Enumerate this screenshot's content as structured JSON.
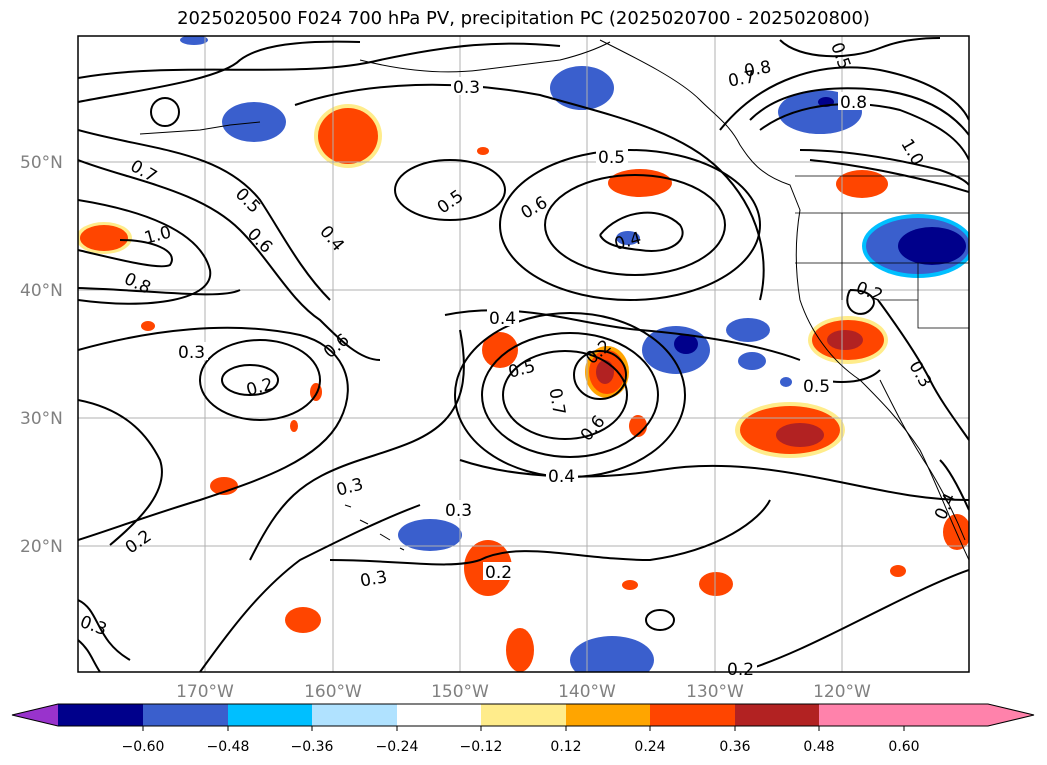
{
  "title": "2025020500 F024 700 hPa PV, precipitation PC (2025020700 - 2025020800)",
  "lat_labels": [
    "50°N",
    "40°N",
    "30°N",
    "20°N"
  ],
  "lon_labels": [
    "170°W",
    "160°W",
    "150°W",
    "140°W",
    "130°W",
    "120°W"
  ],
  "contour_labels": [
    "0.3",
    "0.5",
    "0.8",
    "0.7",
    "0.5",
    "0.6",
    "0.4",
    "1.0",
    "0.8",
    "0.3",
    "0.2",
    "0.6",
    "0.4",
    "0.5",
    "0.7",
    "0.6",
    "0.4",
    "0.3",
    "0.3",
    "0.2",
    "0.3",
    "0.2",
    "0.3",
    "0.2",
    "0.5",
    "0.6",
    "0.4",
    "0.2",
    "0.5",
    "0.3",
    "0.4",
    "0.2",
    "0.8",
    "0.7",
    "1.0",
    "0.5"
  ],
  "colorbar": {
    "colors": [
      "#9933cc",
      "#00008b",
      "#3a5fcd",
      "#00bfff",
      "#b0e2ff",
      "#ffffff",
      "#ffec8b",
      "#ffa500",
      "#ff4500",
      "#b22222",
      "#ff82ab"
    ],
    "tick_labels": [
      "−0.60",
      "−0.48",
      "−0.36",
      "−0.24",
      "−0.12",
      "0.12",
      "0.24",
      "0.36",
      "0.48",
      "0.60"
    ]
  }
}
